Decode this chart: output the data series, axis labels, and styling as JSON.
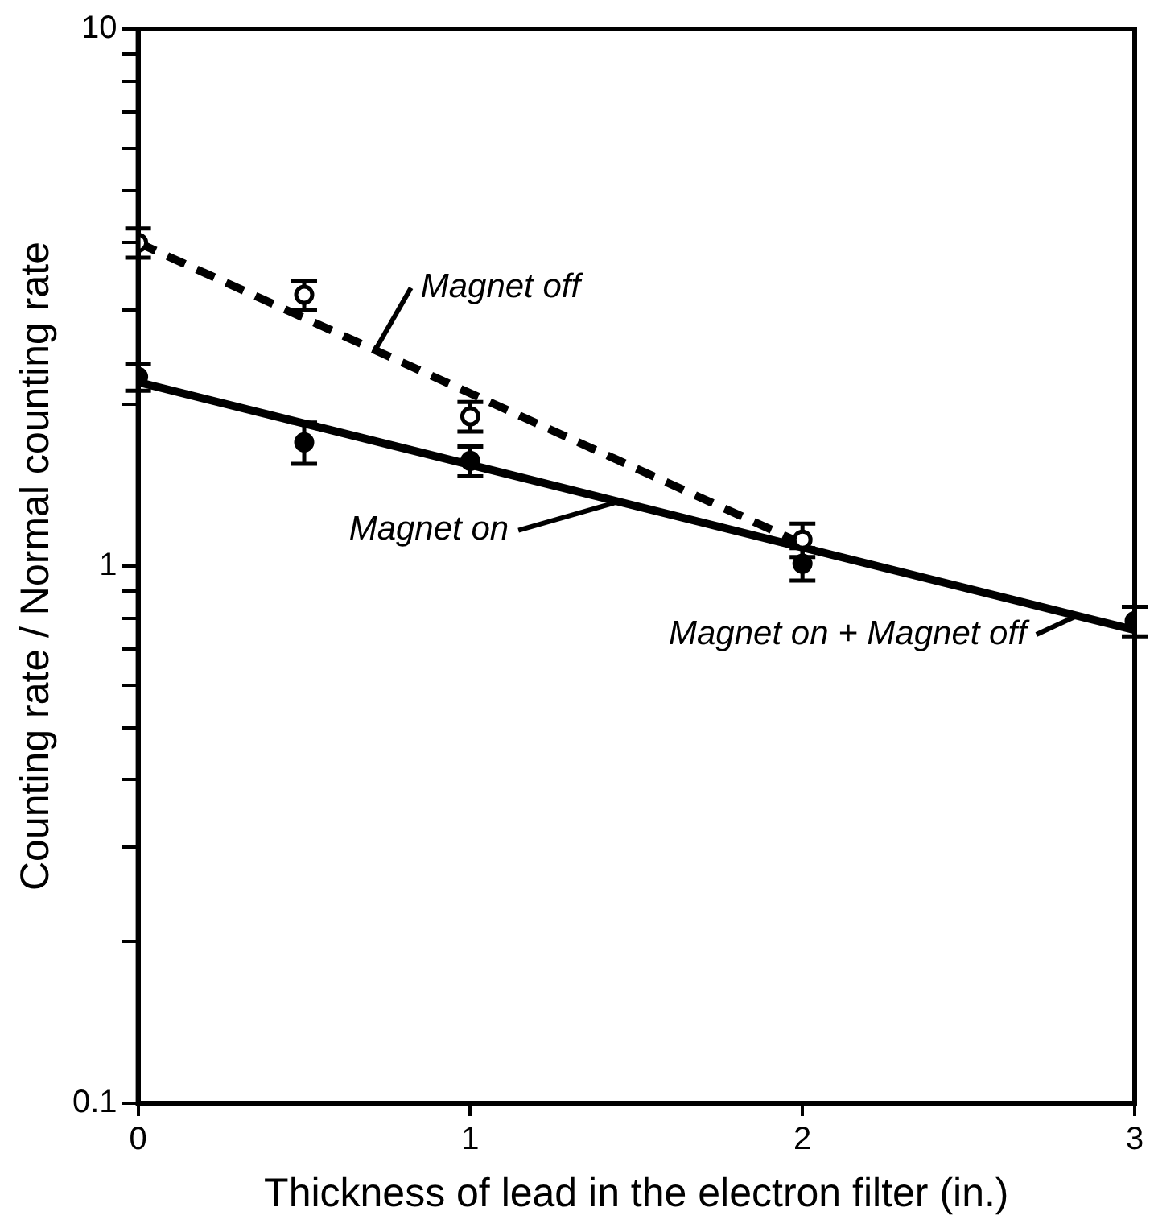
{
  "chart_data": {
    "type": "scatter",
    "xlabel": "Thickness of lead in the electron filter (in.)",
    "ylabel": "Counting rate / Normal counting rate",
    "log": "y",
    "grid": false,
    "legend": false,
    "xlim": [
      0,
      3
    ],
    "xticks": [
      0,
      1,
      2,
      3
    ],
    "ylim": [
      0.1,
      10
    ],
    "yticks": [
      0.1,
      {
        "value": 0.2,
        "label": null
      },
      {
        "value": 0.3,
        "label": null
      },
      {
        "value": 0.4,
        "label": null
      },
      {
        "value": 0.5,
        "label": null
      },
      {
        "value": 0.6,
        "label": null
      },
      {
        "value": 0.7,
        "label": null
      },
      {
        "value": 0.8,
        "label": null
      },
      {
        "value": 0.9,
        "label": null
      },
      1,
      {
        "value": 2,
        "label": null
      },
      {
        "value": 3,
        "label": null
      },
      {
        "value": 4,
        "label": null
      },
      {
        "value": 5,
        "label": null
      },
      {
        "value": 6,
        "label": null
      },
      {
        "value": 7,
        "label": null
      },
      {
        "value": 8,
        "label": null
      },
      {
        "value": 9,
        "label": null
      },
      10
    ],
    "series": [
      {
        "type": "line",
        "color": "#000000",
        "line_style": "dashed",
        "x": [
          0,
          2
        ],
        "values": [
          4.0,
          1.1
        ]
      },
      {
        "type": "line",
        "color": "#000000",
        "line_style": "solid",
        "x": [
          0,
          3
        ],
        "values": [
          2.2,
          0.76
        ]
      },
      {
        "marker": "circle",
        "color": "#ffffff",
        "x": [
          0,
          0.5,
          1,
          2
        ],
        "values": [
          4.0,
          3.2,
          1.9,
          1.12
        ],
        "errors": [
          0.25,
          0.2,
          0.12,
          0.08
        ]
      },
      {
        "marker": "circle",
        "color": "#000000",
        "x": [
          0,
          0.5,
          1,
          2,
          3
        ],
        "values": [
          2.25,
          1.7,
          1.57,
          1.01,
          0.79
        ],
        "errors": [
          0.13,
          0.15,
          0.1,
          0.07,
          0.05
        ]
      }
    ],
    "annotations": [
      {
        "text": "Magnet off",
        "x": 0.71,
        "y": 2.5
      },
      {
        "text": "Magnet on",
        "x": 1.45,
        "y": 1.32
      },
      {
        "text": "Magnet on + Magnet off",
        "x": 2.83,
        "y": 0.81
      }
    ]
  }
}
